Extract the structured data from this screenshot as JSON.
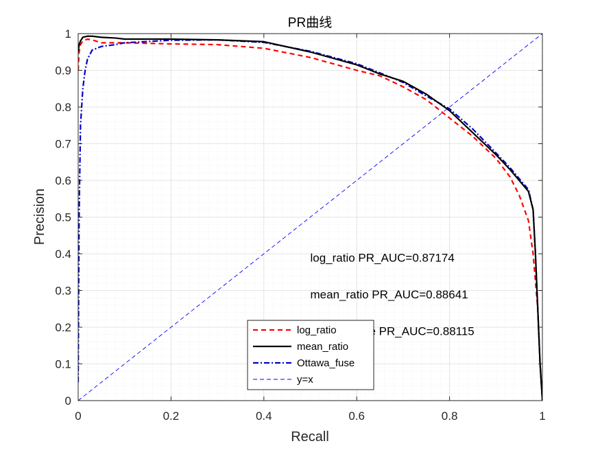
{
  "chart_data": {
    "type": "line",
    "title": "PR曲线",
    "xlabel": "Recall",
    "ylabel": "Precision",
    "xlim": [
      0,
      1
    ],
    "ylim": [
      0,
      1
    ],
    "xticks": [
      "0",
      "0.2",
      "0.4",
      "0.6",
      "0.8",
      "1"
    ],
    "yticks": [
      "0",
      "0.1",
      "0.2",
      "0.3",
      "0.4",
      "0.5",
      "0.6",
      "0.7",
      "0.8",
      "0.9",
      "1"
    ],
    "grid": "on (major and minor)",
    "legend_position": "lower-center",
    "annotations": [
      {
        "text": "log_ratio PR_AUC=0.87174",
        "x": 0.5,
        "y": 0.39
      },
      {
        "text": "mean_ratio PR_AUC=0.88641",
        "x": 0.5,
        "y": 0.29
      },
      {
        "text": "Ottawa_fuse PR_AUC=0.88115",
        "x": 0.5,
        "y": 0.19
      }
    ],
    "series": [
      {
        "name": "log_ratio",
        "color": "#ff0000",
        "style": "dashed",
        "x": [
          0,
          0.002,
          0.005,
          0.01,
          0.02,
          0.03,
          0.05,
          0.1,
          0.2,
          0.3,
          0.4,
          0.5,
          0.6,
          0.65,
          0.7,
          0.75,
          0.8,
          0.85,
          0.9,
          0.93,
          0.95,
          0.97,
          0.98,
          0.99,
          0.995,
          1.0
        ],
        "y": [
          0.9,
          0.95,
          0.97,
          0.98,
          0.985,
          0.983,
          0.975,
          0.975,
          0.972,
          0.97,
          0.96,
          0.935,
          0.9,
          0.885,
          0.855,
          0.82,
          0.77,
          0.72,
          0.66,
          0.61,
          0.56,
          0.49,
          0.4,
          0.25,
          0.1,
          0.0
        ]
      },
      {
        "name": "mean_ratio",
        "color": "#000000",
        "style": "solid",
        "x": [
          0,
          0.002,
          0.005,
          0.01,
          0.02,
          0.03,
          0.05,
          0.08,
          0.1,
          0.2,
          0.3,
          0.4,
          0.5,
          0.6,
          0.65,
          0.7,
          0.75,
          0.8,
          0.85,
          0.9,
          0.93,
          0.95,
          0.97,
          0.98,
          0.985,
          0.99,
          0.995,
          1.0
        ],
        "y": [
          0.95,
          0.97,
          0.98,
          0.99,
          0.993,
          0.993,
          0.99,
          0.988,
          0.985,
          0.985,
          0.983,
          0.978,
          0.95,
          0.915,
          0.89,
          0.87,
          0.835,
          0.79,
          0.73,
          0.67,
          0.63,
          0.6,
          0.57,
          0.52,
          0.4,
          0.25,
          0.1,
          0.0
        ]
      },
      {
        "name": "Ottawa_fuse",
        "color": "#0000cc",
        "style": "dash-dot",
        "x": [
          0,
          0.002,
          0.005,
          0.01,
          0.015,
          0.02,
          0.03,
          0.05,
          0.08,
          0.1,
          0.2,
          0.3,
          0.4,
          0.5,
          0.6,
          0.65,
          0.7,
          0.75,
          0.8,
          0.85,
          0.9,
          0.93,
          0.95,
          0.97,
          0.98,
          0.985,
          0.99,
          0.995,
          1.0
        ],
        "y": [
          0.05,
          0.5,
          0.75,
          0.85,
          0.9,
          0.93,
          0.955,
          0.965,
          0.97,
          0.975,
          0.982,
          0.983,
          0.976,
          0.952,
          0.918,
          0.893,
          0.867,
          0.83,
          0.795,
          0.74,
          0.675,
          0.635,
          0.605,
          0.575,
          0.52,
          0.4,
          0.25,
          0.1,
          0.0
        ]
      },
      {
        "name": "y=x",
        "color": "#0000ff",
        "style": "thin-dashed",
        "x": [
          0,
          1
        ],
        "y": [
          0,
          1
        ]
      }
    ]
  }
}
